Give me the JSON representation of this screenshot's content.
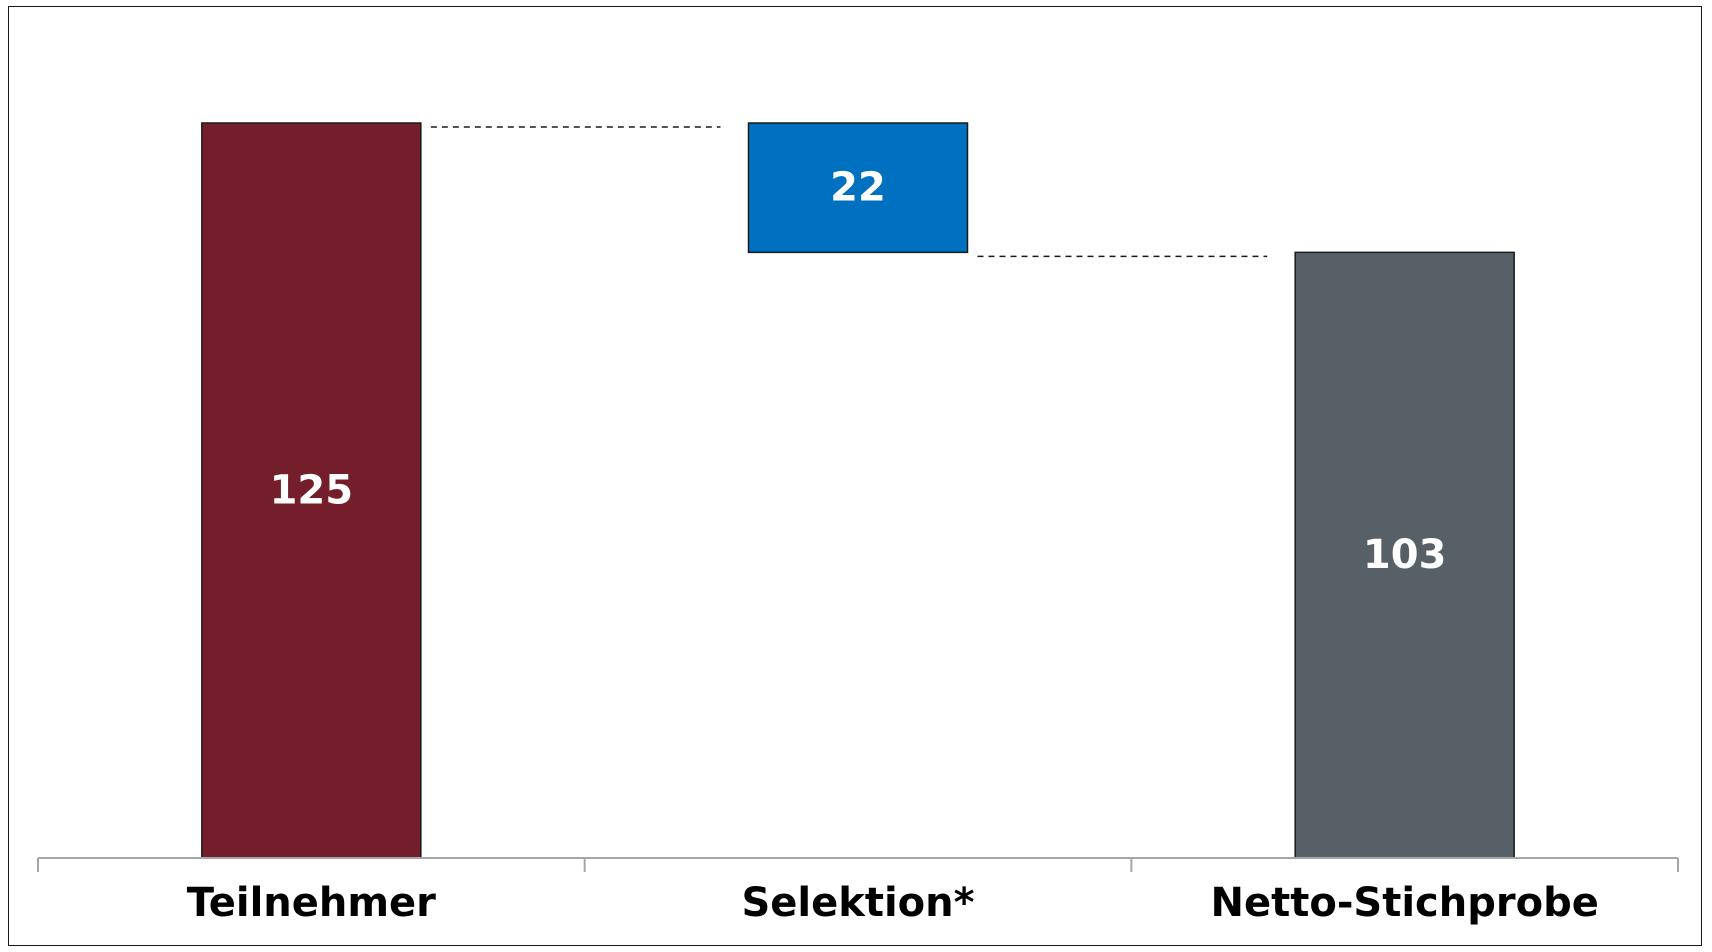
{
  "chart_data": {
    "type": "bar",
    "subtype": "waterfall",
    "categories": [
      "Teilnehmer",
      "Selektion*",
      "Netto-Stichprobe"
    ],
    "values": [
      125,
      22,
      103
    ],
    "steps": [
      {
        "label": "Teilnehmer",
        "value": 125,
        "base": 0,
        "color": "#741e2c"
      },
      {
        "label": "Selektion*",
        "value": 22,
        "base": 103,
        "color": "#0070c0"
      },
      {
        "label": "Netto-Stichprobe",
        "value": 103,
        "base": 0,
        "color": "#566066"
      }
    ],
    "ylim": [
      0,
      125
    ],
    "grid": false,
    "legend": "none",
    "title": "",
    "xlabel": "",
    "ylabel": ""
  }
}
